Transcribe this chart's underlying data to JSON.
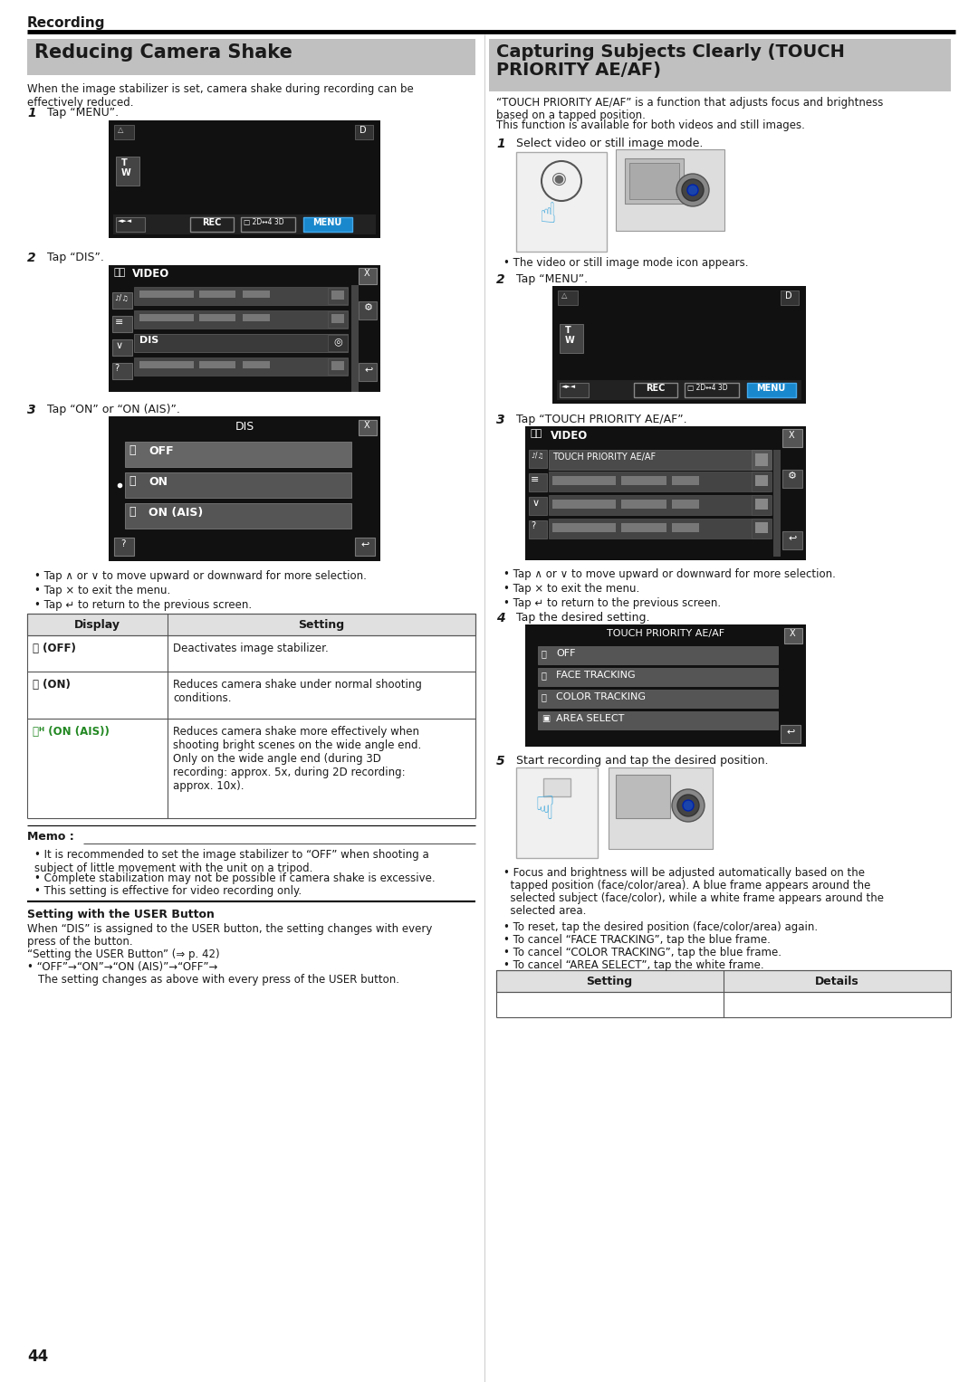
{
  "page_bg": "#ffffff",
  "header_text": "Recording",
  "left_section_title": "Reducing Camera Shake",
  "left_section_title_bg": "#c0c0c0",
  "right_section_title_line1": "Capturing Subjects Clearly (TOUCH",
  "right_section_title_line2": "PRIORITY AE/AF)",
  "right_section_title_bg": "#c0c0c0",
  "left_intro": "When the image stabilizer is set, camera shake during recording can be\neffectively reduced.",
  "right_intro_line1": "“TOUCH PRIORITY AE/AF” is a function that adjusts focus and brightness",
  "right_intro_line2": "based on a tapped position.",
  "right_intro_line3": "This function is available for both videos and still images.",
  "step1_left": "Tap “MENU”.",
  "step2_left": "Tap “DIS”.",
  "step3_left": "Tap “ON” or “ON (AIS)”.",
  "step1_right": "Select video or still image mode.",
  "step2_right": "Tap “MENU”.",
  "step3_right": "Tap “TOUCH PRIORITY AE/AF”.",
  "step4_right": "Tap the desired setting.",
  "step5_right": "Start recording and tap the desired position.",
  "bullet1": "Tap ∧ or ∨ to move upward or downward for more selection.",
  "bullet2": "Tap × to exit the menu.",
  "bullet3": "Tap ↵ to return to the previous screen.",
  "right_bullet1": "Tap ∧ or ∨ to move upward or downward for more selection.",
  "right_bullet2": "Tap × to exit the menu.",
  "right_bullet3": "Tap ↵ to return to the previous screen.",
  "table_header_display": "Display",
  "table_header_setting": "Setting",
  "table_row1_display": "(OFF)",
  "table_row1_setting": "Deactivates image stabilizer.",
  "table_row2_display": "(ON)",
  "table_row2_setting": "Reduces camera shake under normal shooting\nconditions.",
  "table_row3_display": "(ON (AIS))",
  "table_row3_setting": "Reduces camera shake more effectively when\nshooting bright scenes on the wide angle end.\nOnly on the wide angle end (during 3D\nrecording: approx. 5x, during 2D recording:\napprox. 10x).",
  "memo_title": "Memo :",
  "memo1": "It is recommended to set the image stabilizer to “OFF” when shooting a\nsubject of little movement with the unit on a tripod.",
  "memo2": "Complete stabilization may not be possible if camera shake is excessive.",
  "memo3": "This setting is effective for video recording only.",
  "user_btn_title": "Setting with the USER Button",
  "user_btn_body1": "When “DIS” is assigned to the USER button, the setting changes with every",
  "user_btn_body2": "press of the button.",
  "user_btn_body3": "“Setting the USER Button” (⇒ p. 42)",
  "user_btn_body4": "• “OFF”→“ON”→“ON (AIS)”→“OFF”→",
  "user_btn_body5": "The setting changes as above with every press of the USER button.",
  "right_video_or_still": "The video or still image mode icon appears.",
  "right_focus_line1": "Focus and brightness will be adjusted automatically based on the",
  "right_focus_line2": "tapped position (face/color/area). A blue frame appears around the",
  "right_focus_line3": "selected subject (face/color), while a white frame appears around the",
  "right_focus_line4": "selected area.",
  "right_reset": "To reset, tap the desired position (face/color/area) again.",
  "right_cancel1": "To cancel “FACE TRACKING”, tap the blue frame.",
  "right_cancel2": "To cancel “COLOR TRACKING”, tap the blue frame.",
  "right_cancel3": "To cancel “AREA SELECT”, tap the white frame.",
  "right_table_setting": "Setting",
  "right_table_details": "Details",
  "page_number": "44"
}
